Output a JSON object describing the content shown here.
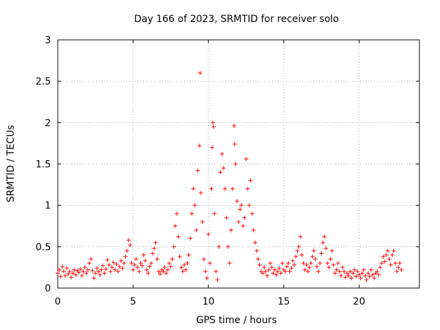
{
  "chart_data": {
    "type": "scatter",
    "title": "Day 166 of 2023, SRMTID for receiver solo",
    "xlabel": "GPS time / hours",
    "ylabel": "SRMTID / TECUs",
    "xlim": [
      0,
      24
    ],
    "ylim": [
      0,
      3
    ],
    "xticks": [
      "0",
      "5",
      "10",
      "15",
      "20"
    ],
    "yticks": [
      "0",
      "0.5",
      "1",
      "1.5",
      "2",
      "2.5",
      "3"
    ],
    "grid": true,
    "marker": "plus",
    "color": "#ff0000",
    "series": [
      {
        "name": "SRMTID",
        "points": [
          [
            0.0,
            0.18
          ],
          [
            0.1,
            0.22
          ],
          [
            0.2,
            0.14
          ],
          [
            0.3,
            0.26
          ],
          [
            0.4,
            0.2
          ],
          [
            0.5,
            0.15
          ],
          [
            0.6,
            0.24
          ],
          [
            0.7,
            0.17
          ],
          [
            0.8,
            0.2
          ],
          [
            0.9,
            0.13
          ],
          [
            1.0,
            0.18
          ],
          [
            1.1,
            0.22
          ],
          [
            1.2,
            0.16
          ],
          [
            1.3,
            0.21
          ],
          [
            1.4,
            0.19
          ],
          [
            1.5,
            0.23
          ],
          [
            1.6,
            0.15
          ],
          [
            1.7,
            0.2
          ],
          [
            1.8,
            0.25
          ],
          [
            1.9,
            0.18
          ],
          [
            2.0,
            0.22
          ],
          [
            2.1,
            0.3
          ],
          [
            2.2,
            0.35
          ],
          [
            2.3,
            0.21
          ],
          [
            2.4,
            0.12
          ],
          [
            2.5,
            0.18
          ],
          [
            2.6,
            0.24
          ],
          [
            2.7,
            0.2
          ],
          [
            2.8,
            0.16
          ],
          [
            2.9,
            0.22
          ],
          [
            3.0,
            0.27
          ],
          [
            3.1,
            0.18
          ],
          [
            3.2,
            0.23
          ],
          [
            3.3,
            0.34
          ],
          [
            3.4,
            0.28
          ],
          [
            3.5,
            0.2
          ],
          [
            3.6,
            0.25
          ],
          [
            3.7,
            0.31
          ],
          [
            3.8,
            0.22
          ],
          [
            3.9,
            0.29
          ],
          [
            4.0,
            0.2
          ],
          [
            4.1,
            0.26
          ],
          [
            4.2,
            0.33
          ],
          [
            4.3,
            0.24
          ],
          [
            4.4,
            0.3
          ],
          [
            4.5,
            0.38
          ],
          [
            4.6,
            0.45
          ],
          [
            4.7,
            0.58
          ],
          [
            4.8,
            0.52
          ],
          [
            4.9,
            0.3
          ],
          [
            5.0,
            0.22
          ],
          [
            5.1,
            0.28
          ],
          [
            5.2,
            0.35
          ],
          [
            5.3,
            0.25
          ],
          [
            5.4,
            0.2
          ],
          [
            5.5,
            0.3
          ],
          [
            5.6,
            0.27
          ],
          [
            5.7,
            0.4
          ],
          [
            5.8,
            0.33
          ],
          [
            5.9,
            0.22
          ],
          [
            6.0,
            0.18
          ],
          [
            6.1,
            0.26
          ],
          [
            6.2,
            0.3
          ],
          [
            6.3,
            0.42
          ],
          [
            6.4,
            0.48
          ],
          [
            6.5,
            0.55
          ],
          [
            6.6,
            0.35
          ],
          [
            6.7,
            0.2
          ],
          [
            6.8,
            0.17
          ],
          [
            6.9,
            0.22
          ],
          [
            7.0,
            0.2
          ],
          [
            7.1,
            0.25
          ],
          [
            7.2,
            0.18
          ],
          [
            7.3,
            0.22
          ],
          [
            7.4,
            0.3
          ],
          [
            7.5,
            0.26
          ],
          [
            7.6,
            0.35
          ],
          [
            7.7,
            0.5
          ],
          [
            7.8,
            0.75
          ],
          [
            7.9,
            0.9
          ],
          [
            8.0,
            0.62
          ],
          [
            8.1,
            0.38
          ],
          [
            8.2,
            0.25
          ],
          [
            8.3,
            0.2
          ],
          [
            8.4,
            0.28
          ],
          [
            8.5,
            0.22
          ],
          [
            8.6,
            0.3
          ],
          [
            8.7,
            0.4
          ],
          [
            8.8,
            0.6
          ],
          [
            8.9,
            0.9
          ],
          [
            9.0,
            1.2
          ],
          [
            9.1,
            1.0
          ],
          [
            9.2,
            0.7
          ],
          [
            9.3,
            1.42
          ],
          [
            9.4,
            1.72
          ],
          [
            9.45,
            2.6
          ],
          [
            9.5,
            1.15
          ],
          [
            9.6,
            0.8
          ],
          [
            9.7,
            0.35
          ],
          [
            9.8,
            0.2
          ],
          [
            9.9,
            0.12
          ],
          [
            10.0,
            0.65
          ],
          [
            10.1,
            0.3
          ],
          [
            10.2,
            1.2
          ],
          [
            10.25,
            1.7
          ],
          [
            10.3,
            2.0
          ],
          [
            10.35,
            1.95
          ],
          [
            10.4,
            0.9
          ],
          [
            10.5,
            0.2
          ],
          [
            10.6,
            0.1
          ],
          [
            10.7,
            0.5
          ],
          [
            10.8,
            1.4
          ],
          [
            10.9,
            1.62
          ],
          [
            11.0,
            1.45
          ],
          [
            11.1,
            1.2
          ],
          [
            11.2,
            0.85
          ],
          [
            11.3,
            0.5
          ],
          [
            11.4,
            0.3
          ],
          [
            11.5,
            0.7
          ],
          [
            11.6,
            1.2
          ],
          [
            11.7,
            1.96
          ],
          [
            11.75,
            1.74
          ],
          [
            11.8,
            1.5
          ],
          [
            11.9,
            1.05
          ],
          [
            12.0,
            0.8
          ],
          [
            12.1,
            0.95
          ],
          [
            12.2,
            1.0
          ],
          [
            12.3,
            0.75
          ],
          [
            12.4,
            0.85
          ],
          [
            12.5,
            1.56
          ],
          [
            12.6,
            1.2
          ],
          [
            12.7,
            1.0
          ],
          [
            12.8,
            1.3
          ],
          [
            12.9,
            0.9
          ],
          [
            13.0,
            0.7
          ],
          [
            13.1,
            0.55
          ],
          [
            13.2,
            0.45
          ],
          [
            13.3,
            0.35
          ],
          [
            13.4,
            0.28
          ],
          [
            13.5,
            0.2
          ],
          [
            13.6,
            0.18
          ],
          [
            13.7,
            0.25
          ],
          [
            13.8,
            0.2
          ],
          [
            13.9,
            0.15
          ],
          [
            14.0,
            0.22
          ],
          [
            14.1,
            0.3
          ],
          [
            14.2,
            0.25
          ],
          [
            14.3,
            0.18
          ],
          [
            14.4,
            0.22
          ],
          [
            14.5,
            0.16
          ],
          [
            14.6,
            0.2
          ],
          [
            14.7,
            0.24
          ],
          [
            14.8,
            0.18
          ],
          [
            14.9,
            0.3
          ],
          [
            15.0,
            0.22
          ],
          [
            15.1,
            0.2
          ],
          [
            15.2,
            0.26
          ],
          [
            15.3,
            0.3
          ],
          [
            15.4,
            0.2
          ],
          [
            15.5,
            0.24
          ],
          [
            15.6,
            0.33
          ],
          [
            15.7,
            0.28
          ],
          [
            15.8,
            0.38
          ],
          [
            15.9,
            0.45
          ],
          [
            16.0,
            0.5
          ],
          [
            16.1,
            0.62
          ],
          [
            16.2,
            0.4
          ],
          [
            16.3,
            0.3
          ],
          [
            16.4,
            0.22
          ],
          [
            16.5,
            0.28
          ],
          [
            16.6,
            0.2
          ],
          [
            16.7,
            0.25
          ],
          [
            16.8,
            0.3
          ],
          [
            16.9,
            0.38
          ],
          [
            17.0,
            0.45
          ],
          [
            17.1,
            0.35
          ],
          [
            17.2,
            0.26
          ],
          [
            17.3,
            0.2
          ],
          [
            17.4,
            0.3
          ],
          [
            17.5,
            0.42
          ],
          [
            17.6,
            0.55
          ],
          [
            17.7,
            0.62
          ],
          [
            17.8,
            0.48
          ],
          [
            17.9,
            0.3
          ],
          [
            18.0,
            0.25
          ],
          [
            18.1,
            0.35
          ],
          [
            18.2,
            0.45
          ],
          [
            18.3,
            0.28
          ],
          [
            18.4,
            0.18
          ],
          [
            18.5,
            0.22
          ],
          [
            18.6,
            0.3
          ],
          [
            18.7,
            0.2
          ],
          [
            18.8,
            0.15
          ],
          [
            18.9,
            0.25
          ],
          [
            19.0,
            0.2
          ],
          [
            19.1,
            0.13
          ],
          [
            19.2,
            0.18
          ],
          [
            19.3,
            0.15
          ],
          [
            19.4,
            0.2
          ],
          [
            19.5,
            0.12
          ],
          [
            19.6,
            0.18
          ],
          [
            19.7,
            0.22
          ],
          [
            19.8,
            0.14
          ],
          [
            19.9,
            0.2
          ],
          [
            20.0,
            0.16
          ],
          [
            20.1,
            0.12
          ],
          [
            20.2,
            0.18
          ],
          [
            20.3,
            0.22
          ],
          [
            20.4,
            0.15
          ],
          [
            20.5,
            0.1
          ],
          [
            20.6,
            0.18
          ],
          [
            20.7,
            0.14
          ],
          [
            20.8,
            0.22
          ],
          [
            20.9,
            0.16
          ],
          [
            21.0,
            0.12
          ],
          [
            21.1,
            0.18
          ],
          [
            21.2,
            0.2
          ],
          [
            21.3,
            0.16
          ],
          [
            21.4,
            0.25
          ],
          [
            21.5,
            0.3
          ],
          [
            21.6,
            0.38
          ],
          [
            21.7,
            0.32
          ],
          [
            21.8,
            0.4
          ],
          [
            21.9,
            0.45
          ],
          [
            22.0,
            0.35
          ],
          [
            22.1,
            0.28
          ],
          [
            22.2,
            0.4
          ],
          [
            22.3,
            0.45
          ],
          [
            22.4,
            0.3
          ],
          [
            22.5,
            0.2
          ],
          [
            22.6,
            0.25
          ],
          [
            22.7,
            0.3
          ],
          [
            22.8,
            0.22
          ]
        ]
      }
    ]
  }
}
